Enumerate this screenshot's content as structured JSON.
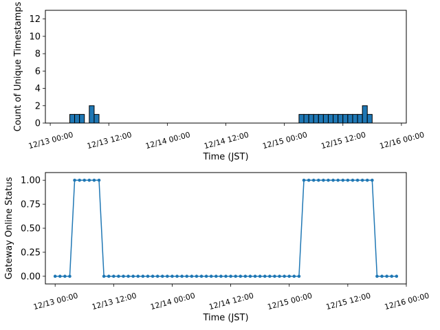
{
  "chart_data": [
    {
      "type": "bar",
      "title": "",
      "xlabel": "Time (JST)",
      "ylabel": "Count of Unique Timestamps",
      "ylim": [
        0,
        13
      ],
      "yticks": [
        0,
        2,
        4,
        6,
        8,
        10,
        12
      ],
      "xlim": [
        -1,
        73
      ],
      "xticks": [
        0,
        12,
        24,
        36,
        48,
        60,
        72
      ],
      "xtick_labels": [
        "12/13 00:00",
        "12/13 12:00",
        "12/14 00:00",
        "12/14 12:00",
        "12/15 00:00",
        "12/15 12:00",
        "12/16 00:00"
      ],
      "bar_color": "#1f77b4",
      "bins": [
        {
          "start": 4,
          "end": 5,
          "value": 1
        },
        {
          "start": 5,
          "end": 6,
          "value": 1
        },
        {
          "start": 6,
          "end": 7,
          "value": 1
        },
        {
          "start": 8,
          "end": 9,
          "value": 2
        },
        {
          "start": 9,
          "end": 10,
          "value": 1
        },
        {
          "start": 51,
          "end": 52,
          "value": 1
        },
        {
          "start": 52,
          "end": 53,
          "value": 1
        },
        {
          "start": 53,
          "end": 54,
          "value": 1
        },
        {
          "start": 54,
          "end": 55,
          "value": 1
        },
        {
          "start": 55,
          "end": 56,
          "value": 1
        },
        {
          "start": 56,
          "end": 57,
          "value": 1
        },
        {
          "start": 57,
          "end": 58,
          "value": 1
        },
        {
          "start": 58,
          "end": 59,
          "value": 1
        },
        {
          "start": 59,
          "end": 60,
          "value": 1
        },
        {
          "start": 60,
          "end": 61,
          "value": 1
        },
        {
          "start": 61,
          "end": 62,
          "value": 1
        },
        {
          "start": 62,
          "end": 63,
          "value": 1
        },
        {
          "start": 63,
          "end": 64,
          "value": 1
        },
        {
          "start": 64,
          "end": 65,
          "value": 2
        },
        {
          "start": 65,
          "end": 66,
          "value": 1
        }
      ]
    },
    {
      "type": "line",
      "title": "",
      "xlabel": "Time (JST)",
      "ylabel": "Gateway Online Status",
      "ylim": [
        -0.08,
        1.08
      ],
      "yticks": [
        0.0,
        0.25,
        0.5,
        0.75,
        1.0
      ],
      "ytick_labels": [
        "0.00",
        "0.25",
        "0.50",
        "0.75",
        "1.00"
      ],
      "xlim": [
        -2,
        72
      ],
      "xticks": [
        0,
        12,
        24,
        36,
        48,
        60,
        72
      ],
      "xtick_labels": [
        "12/13 00:00",
        "12/13 12:00",
        "12/14 00:00",
        "12/14 12:00",
        "12/15 00:00",
        "12/15 12:00",
        "12/16 00:00"
      ],
      "line_color": "#1f77b4",
      "x": [
        0,
        1,
        2,
        3,
        4,
        5,
        6,
        7,
        8,
        9,
        10,
        11,
        12,
        13,
        14,
        15,
        16,
        17,
        18,
        19,
        20,
        21,
        22,
        23,
        24,
        25,
        26,
        27,
        28,
        29,
        30,
        31,
        32,
        33,
        34,
        35,
        36,
        37,
        38,
        39,
        40,
        41,
        42,
        43,
        44,
        45,
        46,
        47,
        48,
        49,
        50,
        51,
        52,
        53,
        54,
        55,
        56,
        57,
        58,
        59,
        60,
        61,
        62,
        63,
        64,
        65,
        66,
        67,
        68,
        69,
        70
      ],
      "y": [
        0,
        0,
        0,
        0,
        1,
        1,
        1,
        1,
        1,
        1,
        0,
        0,
        0,
        0,
        0,
        0,
        0,
        0,
        0,
        0,
        0,
        0,
        0,
        0,
        0,
        0,
        0,
        0,
        0,
        0,
        0,
        0,
        0,
        0,
        0,
        0,
        0,
        0,
        0,
        0,
        0,
        0,
        0,
        0,
        0,
        0,
        0,
        0,
        0,
        0,
        0,
        1,
        1,
        1,
        1,
        1,
        1,
        1,
        1,
        1,
        1,
        1,
        1,
        1,
        1,
        1,
        0,
        0,
        0,
        0,
        0
      ]
    }
  ]
}
